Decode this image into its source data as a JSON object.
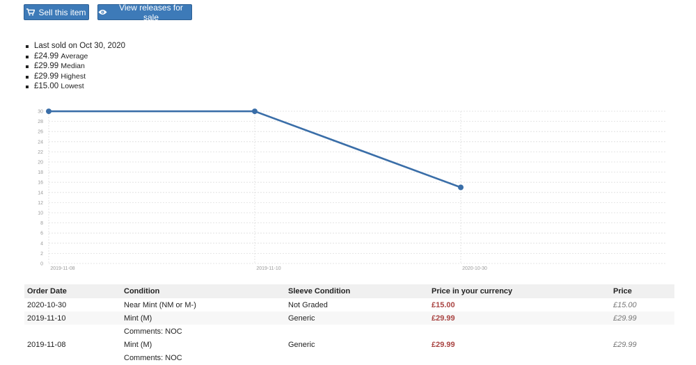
{
  "toolbar": {
    "sell_label": "Sell this item",
    "view_releases_label": "View releases for sale"
  },
  "stats": {
    "last_sold": "Last sold on Oct 30, 2020",
    "average_value": "£24.99",
    "average_label": "Average",
    "median_value": "£29.99",
    "median_label": "Median",
    "highest_value": "£29.99",
    "highest_label": "Highest",
    "lowest_value": "£15.00",
    "lowest_label": "Lowest"
  },
  "chart_data": {
    "type": "line",
    "x": [
      "2019-11-08",
      "2019-11-10",
      "2020-10-30"
    ],
    "values": [
      29.99,
      29.99,
      15.0
    ],
    "ylim": [
      0,
      30
    ],
    "yticks": [
      0,
      2,
      4,
      6,
      8,
      10,
      12,
      14,
      16,
      18,
      20,
      22,
      24,
      26,
      28,
      30
    ],
    "title": "",
    "xlabel": "",
    "ylabel": "",
    "grid": true,
    "color": "#3a6ea8"
  },
  "table": {
    "headers": [
      "Order Date",
      "Condition",
      "Sleeve Condition",
      "Price in your currency",
      "Price"
    ],
    "rows": [
      {
        "date": "2020-10-30",
        "condition": "Near Mint (NM or M-)",
        "sleeve": "Not Graded",
        "price_local": "£15.00",
        "price": "£15.00",
        "comments": ""
      },
      {
        "date": "2019-11-10",
        "condition": "Mint (M)",
        "sleeve": "Generic",
        "price_local": "£29.99",
        "price": "£29.99",
        "comments": "Comments: NOC"
      },
      {
        "date": "2019-11-08",
        "condition": "Mint (M)",
        "sleeve": "Generic",
        "price_local": "£29.99",
        "price": "£29.99",
        "comments": "Comments: NOC"
      }
    ]
  }
}
